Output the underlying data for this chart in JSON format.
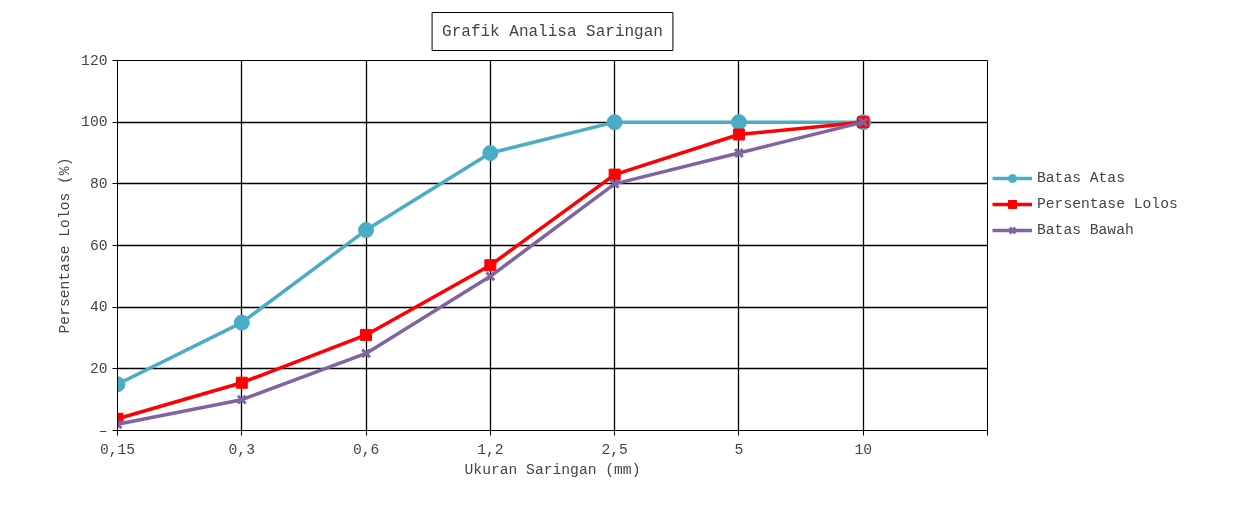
{
  "chart_data": {
    "type": "line",
    "title": "Grafik Analisa Saringan",
    "xlabel": "Ukuran Saringan (mm)",
    "ylabel": "Persentase Lolos (%)",
    "categories": [
      "0,15",
      "0,3",
      "0,6",
      "1,2",
      "2,5",
      "5",
      "10",
      null
    ],
    "series": [
      {
        "name": "Batas Atas",
        "color": "#4bacc6",
        "marker": "circle",
        "values": [
          15,
          35,
          65,
          90,
          100,
          100,
          100,
          null
        ]
      },
      {
        "name": "Persentase Lolos",
        "color": "#ff0000",
        "marker": "square",
        "values": [
          3.8,
          15.5,
          31,
          53.6,
          83,
          96,
          100,
          null
        ]
      },
      {
        "name": "Batas Bawah",
        "color": "#8064a2",
        "marker": "cross",
        "values": [
          2,
          10,
          25,
          50,
          80,
          90,
          100,
          null
        ]
      }
    ],
    "ylim": [
      0,
      120
    ],
    "yticks": [
      {
        "value": 0,
        "label": "–"
      },
      20,
      40,
      60,
      80,
      100,
      120
    ],
    "grid": true,
    "legend": "right",
    "line_style": "solid"
  }
}
